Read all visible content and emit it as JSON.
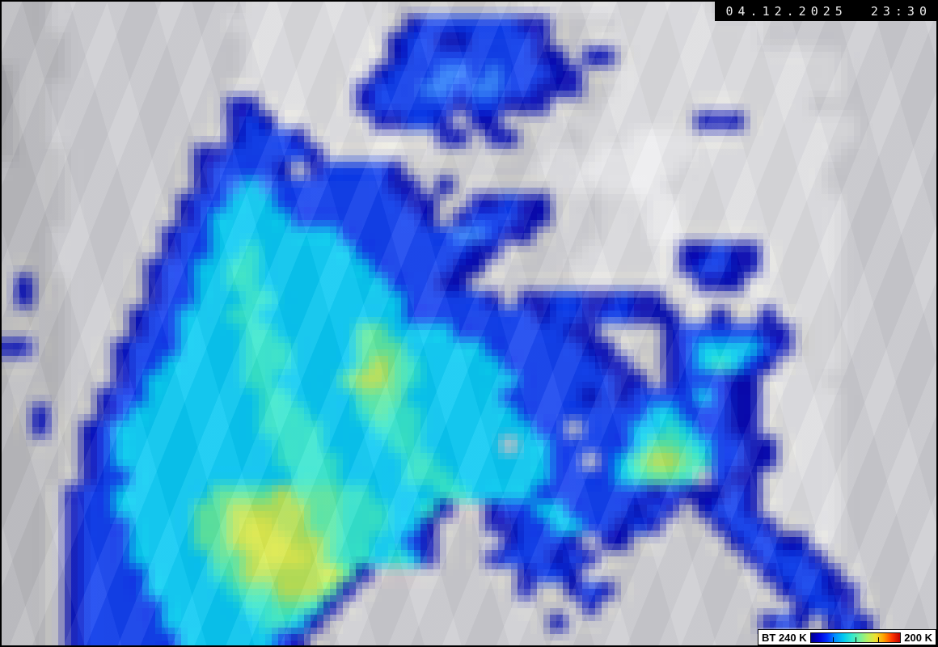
{
  "header": {
    "timestamp": "04.12.2025 23:30"
  },
  "colorbar": {
    "label_left": "BT 240 K",
    "label_right": "200 K",
    "gradient": [
      "#000090",
      "#0000d8",
      "#0030ff",
      "#0090ff",
      "#00c8f0",
      "#30e8d0",
      "#70f0a0",
      "#b8f060",
      "#f0e030",
      "#ffa000",
      "#ff3800",
      "#c00000"
    ],
    "tick_positions_pct": [
      25,
      50,
      75
    ]
  },
  "satellite_image": {
    "description_colors": {
      "warm_cloud_gray": "#cbcbcf",
      "cold_cloud_navy": "#0009b4",
      "cold_cloud_blue": "#0a3aee",
      "cold_cloud_cyan": "#00c7f3",
      "coldest_core_yellow": "#dded4a"
    },
    "cols": 58,
    "rows": 40,
    "palette": {
      "a": "#a7a7ab",
      "b": "#b9b9bd",
      "c": "#cbcbcf",
      "d": "#dcdcdf",
      "e": "#ececee",
      "N": "#0009b4",
      "B": "#0a3aee",
      "R": "#3282ff",
      "C": "#00c7f3",
      "T": "#2ee5cd",
      "G": "#57e8a1",
      "Y": "#b6e455",
      "X": "#dded4a"
    },
    "grid": [
      "bbbccccccccccccdddddddddccccccccddddddddddddcccccccccccccc",
      "bbbcccccccccccddddddddddcNBBBBBBNNccccdddddddddccccccccccc",
      "bbbbcccccccccccdddddddddNBBNNBBBBNcccddddddddddccccccccccc",
      "bbbbcccccccccccdddddddddNBBBBBBBBNNcNNcdddddddddddddcccccc",
      "abbbcccccccccccddddddddNBBBRRBRBBBNNccddddddddddddddcccccc",
      "abbcccccccccccddddddddNBBBRRBRRBBNNNccddddddddddddddcccccc",
      "abbcccccccccccNNddddddNBBBBBNBBNNNcccdddddddddddddccccccc",
      "abbcccccccccccNBNddddddNNBBNcNNccccddddddddNNNdddddddcccccc",
      "abbcccccccccccNBBBNddddddddNNcNNccccdddeeeeddddddddddcccccc",
      "abbbccccccccNNBBBBBNdddddddcccccccdddeeeeeedddddddddcccccc",
      "bbbbccccccccNBBBBNcNBBBBNccccccccdddeeeeeedddddddddcccccc",
      "bbbbccccccccNBRCRBBBBBBBNNcNccccccdddeeeeddddddddddcccccc",
      "bbbbcccccccNBBCCCBBBBBBBBNNccNNBNNcccdddeeddddddddddcccccc",
      "bbbbcccccccNBCCCCCBBBBBBBBNcNBBBNNcccdddeeddddddddddcccccc",
      "bbbcccccccNBBCCCCCCCCBBBBBBBRRBNNccccdddeeddddddddddcccccc",
      "bbbcccccccNBBCCTCCCCCCBBBBBBBNNcccccddddddNNBNNdddddcccccc",
      "bbbccccccNBBCCTTCCCCCCCBBBBBNNcccccdddddddNBBNNdddddcccccc",
      "bNbbcccccNBBCCTTCCCCCCCCBBBNNccccccddddddddNNNddddddcccccc",
      "bNbbcccccNBBCCCTTCCCCCCCCBBBBBNcNNBBNNBNNcddddddddddcccccc",
      "bbbbccccNBBCCCTTCCCCCCCCCBBBBBBBBNBBNBBNNNccNccNddddcccccc",
      "bbbbccccNBBCCCCTTCCCCCGGCCCCBBBBBBBNNccccNBBBBBNNcddcccccc",
      "NNbbcccNBBBCCCCTTTCCCCGGGCCCCCBBBBBBNNcccNBCCCCBNcddcccccc",
      "bbbbcccNBBCCCCCTTTCCCCGYGTCCCCCBBBBBBNNccNBCTCBNcdddcccccc",
      "bbbbcccNBCCCCCCTTCCCCGYYGTCCCCCCBBBBBBNNcNBBBNNddddccccccc",
      "bbbbccNBBCCCCCCCTTCCCCGGGCCCCCCBBBBBNBNBBBBCBNNdddddcccccc",
      "bbNbccNBCCCCCCCCTTTCCCTGTTCCCCCCBBBBBBBBCCBBBNNdddddcccccc",
      "bbNbcNBCCCCCCCCCTTTTCCCTTTCCCCCCCBBcBBBCCTCBBNNdddddcccccc",
      "bbbbcNBCCCCCCCCCCTTTCCCCTTCCCCCcCCBBBBBCGGTCBBNNddddcccccc",
      "bbbbcNBCCCCCCCCCCTTTTCCCCTTCCCCCCCBBcBCGYYGTBBNNddddcccccc",
      "bbbbcNBBCCCCCCCCCCTTTCCCCTTTCCCCCCBBBBCTGGTcBNNdddddcccccc",
      "bbbcNBBCCCCCCGGGGYGGGTTCCCCTTCCCCBBBBBBBNBNNNBNdddddcccccc",
      "bbbcNBBCCCCCGGYYYYYGGTTTCCTNccNBBCCBBBBNBNcNBBNdddddcccccc",
      "bbbcNBBBCCCCGGYXXYYGGTTTCCNcccNNBBCCBBNBNcccNBBNcdddcccccc",
      "bbbcNBBBCCCCGGYXXXYYGTTCCBNccccNBBBNcNNccccccNBBNNddcccccc",
      "bbbcNBBBCCCCCGGYXXXYGTTCTCNcccNBBBNBNcccccccccNBBBNccccccc",
      "bbbcNBBBBCCCCTGYYYYYXGNcccccccccNBBNcccccccccccNBBBNcccccc",
      "bbbcNBBBBCCCCCTGGYYYGNccccccccccNccNBNccccccccccNBBNNccccc",
      "bbbcNBBBBBCCCCCTTGGTNcccccccccccccccNccccccccccccNBBNccccc",
      "bbbcNBBBBBCCCCCCTTCNccccccccccccccNccccccccccccNBNcNBNcccc",
      "bbbcNBBBBBBCCCCCCBNccccccccccccccccccccccccccccccccNBNcccc"
    ]
  }
}
